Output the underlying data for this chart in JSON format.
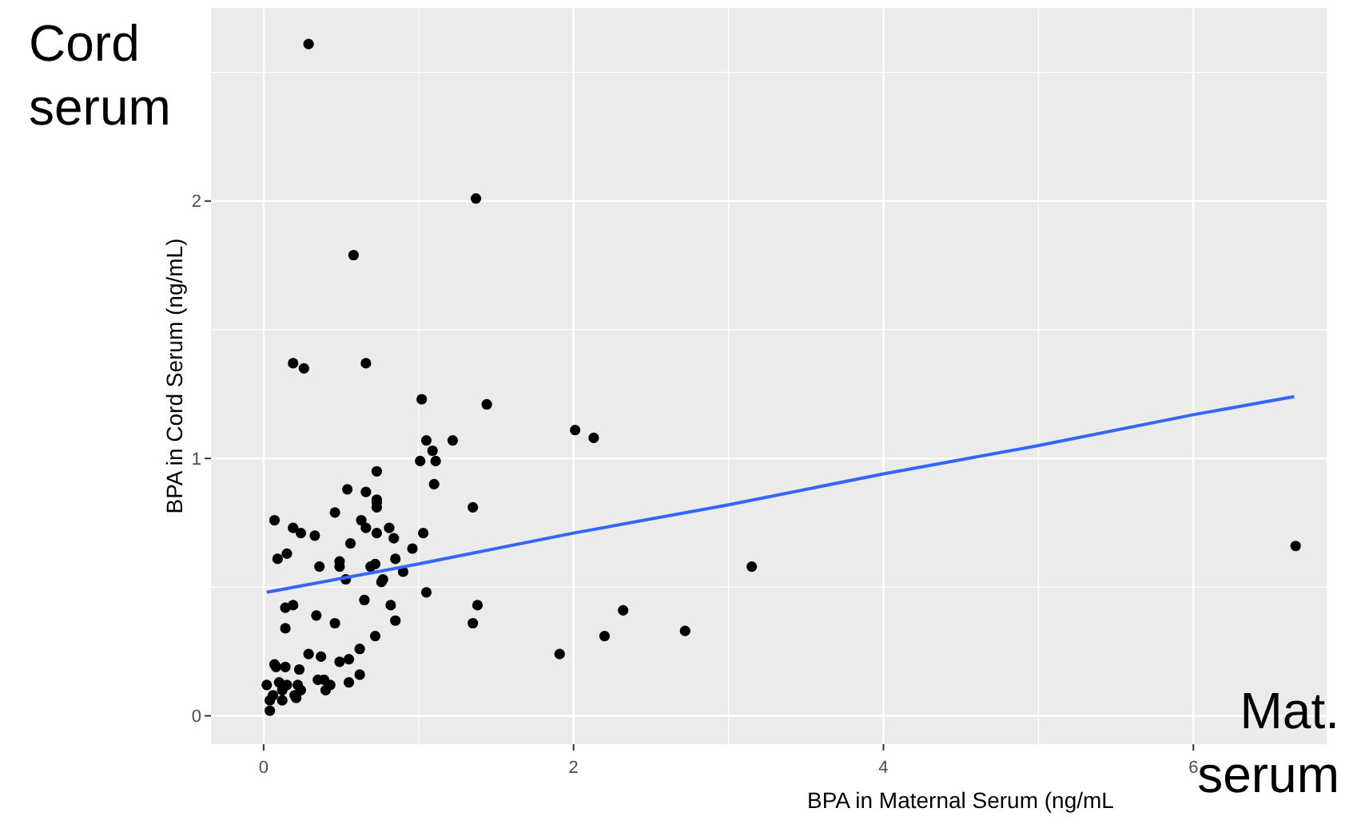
{
  "chart_data": {
    "type": "scatter",
    "xlabel": "BPA in Maternal Serum (ng/mL",
    "ylabel": "BPA in Cord Serum (ng/mL)",
    "annotations": [
      "Cord serum",
      "Mat. serum"
    ],
    "xlim": [
      -0.34,
      6.86
    ],
    "ylim": [
      -0.11,
      2.75
    ],
    "xticks": [
      0,
      2,
      4,
      6
    ],
    "yticks": [
      0,
      1,
      2
    ],
    "grid": true,
    "marker": "circle",
    "series": [
      {
        "color": "#000000",
        "x": [
          0.29,
          1.37,
          0.58,
          0.19,
          0.26,
          0.66,
          1.02,
          1.44,
          2.01,
          2.13,
          1.05,
          1.22,
          1.09,
          1.01,
          1.11,
          0.73,
          1.1,
          0.54,
          0.66,
          0.73,
          0.73,
          0.73,
          0.46,
          1.35,
          0.07,
          0.19,
          0.24,
          0.63,
          0.66,
          0.81,
          0.84,
          0.73,
          0.33,
          1.03,
          0.56,
          0.85,
          0.96,
          0.09,
          0.15,
          0.49,
          0.49,
          0.36,
          0.72,
          0.69,
          0.53,
          0.9,
          0.77,
          0.76,
          1.05,
          0.65,
          0.14,
          0.19,
          0.82,
          1.38,
          0.34,
          0.14,
          0.46,
          0.85,
          1.35,
          0.72,
          0.62,
          0.29,
          0.37,
          1.91,
          0.49,
          0.55,
          0.07,
          0.08,
          0.14,
          0.23,
          0.62,
          0.35,
          0.39,
          0.55,
          0.02,
          0.1,
          0.15,
          0.22,
          0.43,
          0.12,
          0.24,
          0.4,
          0.06,
          0.2,
          0.04,
          0.12,
          0.21,
          0.04,
          3.15,
          6.66,
          2.32,
          2.2,
          2.72
        ],
        "values": [
          2.61,
          2.01,
          1.79,
          1.37,
          1.35,
          1.37,
          1.23,
          1.21,
          1.11,
          1.08,
          1.07,
          1.07,
          1.03,
          0.99,
          0.99,
          0.95,
          0.9,
          0.88,
          0.87,
          0.84,
          0.83,
          0.81,
          0.79,
          0.81,
          0.76,
          0.73,
          0.71,
          0.76,
          0.73,
          0.73,
          0.69,
          0.71,
          0.7,
          0.71,
          0.67,
          0.61,
          0.65,
          0.61,
          0.63,
          0.6,
          0.58,
          0.58,
          0.59,
          0.58,
          0.53,
          0.56,
          0.53,
          0.52,
          0.48,
          0.45,
          0.42,
          0.43,
          0.43,
          0.43,
          0.39,
          0.34,
          0.36,
          0.37,
          0.36,
          0.31,
          0.26,
          0.24,
          0.23,
          0.24,
          0.21,
          0.22,
          0.2,
          0.19,
          0.19,
          0.18,
          0.16,
          0.14,
          0.14,
          0.13,
          0.12,
          0.13,
          0.12,
          0.12,
          0.12,
          0.1,
          0.1,
          0.1,
          0.08,
          0.08,
          0.06,
          0.06,
          0.07,
          0.02,
          0.58,
          0.66,
          0.41,
          0.31,
          0.33
        ]
      },
      {
        "type": "line",
        "color": "#3366ff",
        "marker": "none",
        "line_style": "solid",
        "x": [
          0.02,
          1,
          2,
          3,
          4,
          5,
          6,
          6.65
        ],
        "values": [
          0.48,
          0.59,
          0.71,
          0.82,
          0.94,
          1.05,
          1.17,
          1.24
        ]
      }
    ]
  }
}
